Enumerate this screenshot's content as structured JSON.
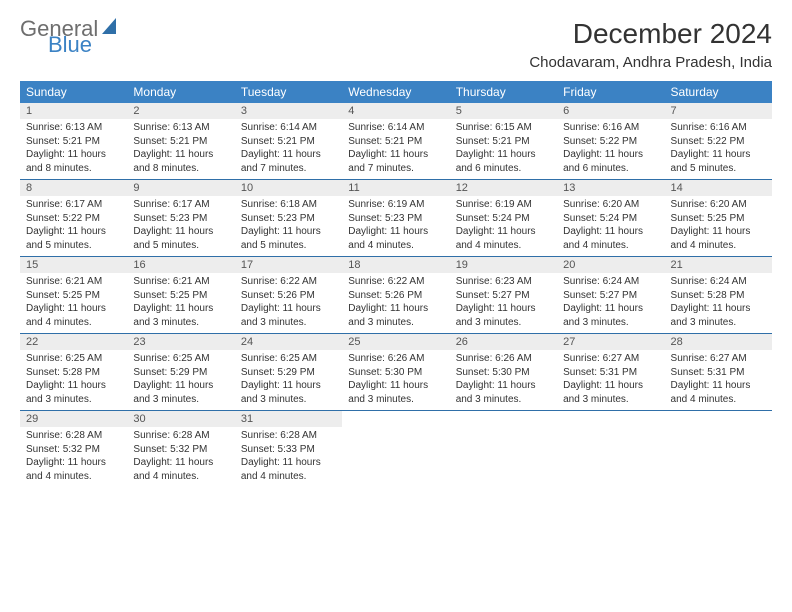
{
  "logo": {
    "word1": "General",
    "word2": "Blue"
  },
  "title": "December 2024",
  "location": "Chodavaram, Andhra Pradesh, India",
  "day_headers": [
    "Sunday",
    "Monday",
    "Tuesday",
    "Wednesday",
    "Thursday",
    "Friday",
    "Saturday"
  ],
  "colors": {
    "header_bg": "#3b82c4",
    "header_text": "#ffffff",
    "daynum_bg": "#ededed",
    "divider": "#2f6fa8",
    "body_text": "#333333"
  },
  "weeks": [
    [
      {
        "n": "1",
        "sr": "Sunrise: 6:13 AM",
        "ss": "Sunset: 5:21 PM",
        "d1": "Daylight: 11 hours",
        "d2": "and 8 minutes."
      },
      {
        "n": "2",
        "sr": "Sunrise: 6:13 AM",
        "ss": "Sunset: 5:21 PM",
        "d1": "Daylight: 11 hours",
        "d2": "and 8 minutes."
      },
      {
        "n": "3",
        "sr": "Sunrise: 6:14 AM",
        "ss": "Sunset: 5:21 PM",
        "d1": "Daylight: 11 hours",
        "d2": "and 7 minutes."
      },
      {
        "n": "4",
        "sr": "Sunrise: 6:14 AM",
        "ss": "Sunset: 5:21 PM",
        "d1": "Daylight: 11 hours",
        "d2": "and 7 minutes."
      },
      {
        "n": "5",
        "sr": "Sunrise: 6:15 AM",
        "ss": "Sunset: 5:21 PM",
        "d1": "Daylight: 11 hours",
        "d2": "and 6 minutes."
      },
      {
        "n": "6",
        "sr": "Sunrise: 6:16 AM",
        "ss": "Sunset: 5:22 PM",
        "d1": "Daylight: 11 hours",
        "d2": "and 6 minutes."
      },
      {
        "n": "7",
        "sr": "Sunrise: 6:16 AM",
        "ss": "Sunset: 5:22 PM",
        "d1": "Daylight: 11 hours",
        "d2": "and 5 minutes."
      }
    ],
    [
      {
        "n": "8",
        "sr": "Sunrise: 6:17 AM",
        "ss": "Sunset: 5:22 PM",
        "d1": "Daylight: 11 hours",
        "d2": "and 5 minutes."
      },
      {
        "n": "9",
        "sr": "Sunrise: 6:17 AM",
        "ss": "Sunset: 5:23 PM",
        "d1": "Daylight: 11 hours",
        "d2": "and 5 minutes."
      },
      {
        "n": "10",
        "sr": "Sunrise: 6:18 AM",
        "ss": "Sunset: 5:23 PM",
        "d1": "Daylight: 11 hours",
        "d2": "and 5 minutes."
      },
      {
        "n": "11",
        "sr": "Sunrise: 6:19 AM",
        "ss": "Sunset: 5:23 PM",
        "d1": "Daylight: 11 hours",
        "d2": "and 4 minutes."
      },
      {
        "n": "12",
        "sr": "Sunrise: 6:19 AM",
        "ss": "Sunset: 5:24 PM",
        "d1": "Daylight: 11 hours",
        "d2": "and 4 minutes."
      },
      {
        "n": "13",
        "sr": "Sunrise: 6:20 AM",
        "ss": "Sunset: 5:24 PM",
        "d1": "Daylight: 11 hours",
        "d2": "and 4 minutes."
      },
      {
        "n": "14",
        "sr": "Sunrise: 6:20 AM",
        "ss": "Sunset: 5:25 PM",
        "d1": "Daylight: 11 hours",
        "d2": "and 4 minutes."
      }
    ],
    [
      {
        "n": "15",
        "sr": "Sunrise: 6:21 AM",
        "ss": "Sunset: 5:25 PM",
        "d1": "Daylight: 11 hours",
        "d2": "and 4 minutes."
      },
      {
        "n": "16",
        "sr": "Sunrise: 6:21 AM",
        "ss": "Sunset: 5:25 PM",
        "d1": "Daylight: 11 hours",
        "d2": "and 3 minutes."
      },
      {
        "n": "17",
        "sr": "Sunrise: 6:22 AM",
        "ss": "Sunset: 5:26 PM",
        "d1": "Daylight: 11 hours",
        "d2": "and 3 minutes."
      },
      {
        "n": "18",
        "sr": "Sunrise: 6:22 AM",
        "ss": "Sunset: 5:26 PM",
        "d1": "Daylight: 11 hours",
        "d2": "and 3 minutes."
      },
      {
        "n": "19",
        "sr": "Sunrise: 6:23 AM",
        "ss": "Sunset: 5:27 PM",
        "d1": "Daylight: 11 hours",
        "d2": "and 3 minutes."
      },
      {
        "n": "20",
        "sr": "Sunrise: 6:24 AM",
        "ss": "Sunset: 5:27 PM",
        "d1": "Daylight: 11 hours",
        "d2": "and 3 minutes."
      },
      {
        "n": "21",
        "sr": "Sunrise: 6:24 AM",
        "ss": "Sunset: 5:28 PM",
        "d1": "Daylight: 11 hours",
        "d2": "and 3 minutes."
      }
    ],
    [
      {
        "n": "22",
        "sr": "Sunrise: 6:25 AM",
        "ss": "Sunset: 5:28 PM",
        "d1": "Daylight: 11 hours",
        "d2": "and 3 minutes."
      },
      {
        "n": "23",
        "sr": "Sunrise: 6:25 AM",
        "ss": "Sunset: 5:29 PM",
        "d1": "Daylight: 11 hours",
        "d2": "and 3 minutes."
      },
      {
        "n": "24",
        "sr": "Sunrise: 6:25 AM",
        "ss": "Sunset: 5:29 PM",
        "d1": "Daylight: 11 hours",
        "d2": "and 3 minutes."
      },
      {
        "n": "25",
        "sr": "Sunrise: 6:26 AM",
        "ss": "Sunset: 5:30 PM",
        "d1": "Daylight: 11 hours",
        "d2": "and 3 minutes."
      },
      {
        "n": "26",
        "sr": "Sunrise: 6:26 AM",
        "ss": "Sunset: 5:30 PM",
        "d1": "Daylight: 11 hours",
        "d2": "and 3 minutes."
      },
      {
        "n": "27",
        "sr": "Sunrise: 6:27 AM",
        "ss": "Sunset: 5:31 PM",
        "d1": "Daylight: 11 hours",
        "d2": "and 3 minutes."
      },
      {
        "n": "28",
        "sr": "Sunrise: 6:27 AM",
        "ss": "Sunset: 5:31 PM",
        "d1": "Daylight: 11 hours",
        "d2": "and 4 minutes."
      }
    ],
    [
      {
        "n": "29",
        "sr": "Sunrise: 6:28 AM",
        "ss": "Sunset: 5:32 PM",
        "d1": "Daylight: 11 hours",
        "d2": "and 4 minutes."
      },
      {
        "n": "30",
        "sr": "Sunrise: 6:28 AM",
        "ss": "Sunset: 5:32 PM",
        "d1": "Daylight: 11 hours",
        "d2": "and 4 minutes."
      },
      {
        "n": "31",
        "sr": "Sunrise: 6:28 AM",
        "ss": "Sunset: 5:33 PM",
        "d1": "Daylight: 11 hours",
        "d2": "and 4 minutes."
      },
      null,
      null,
      null,
      null
    ]
  ]
}
